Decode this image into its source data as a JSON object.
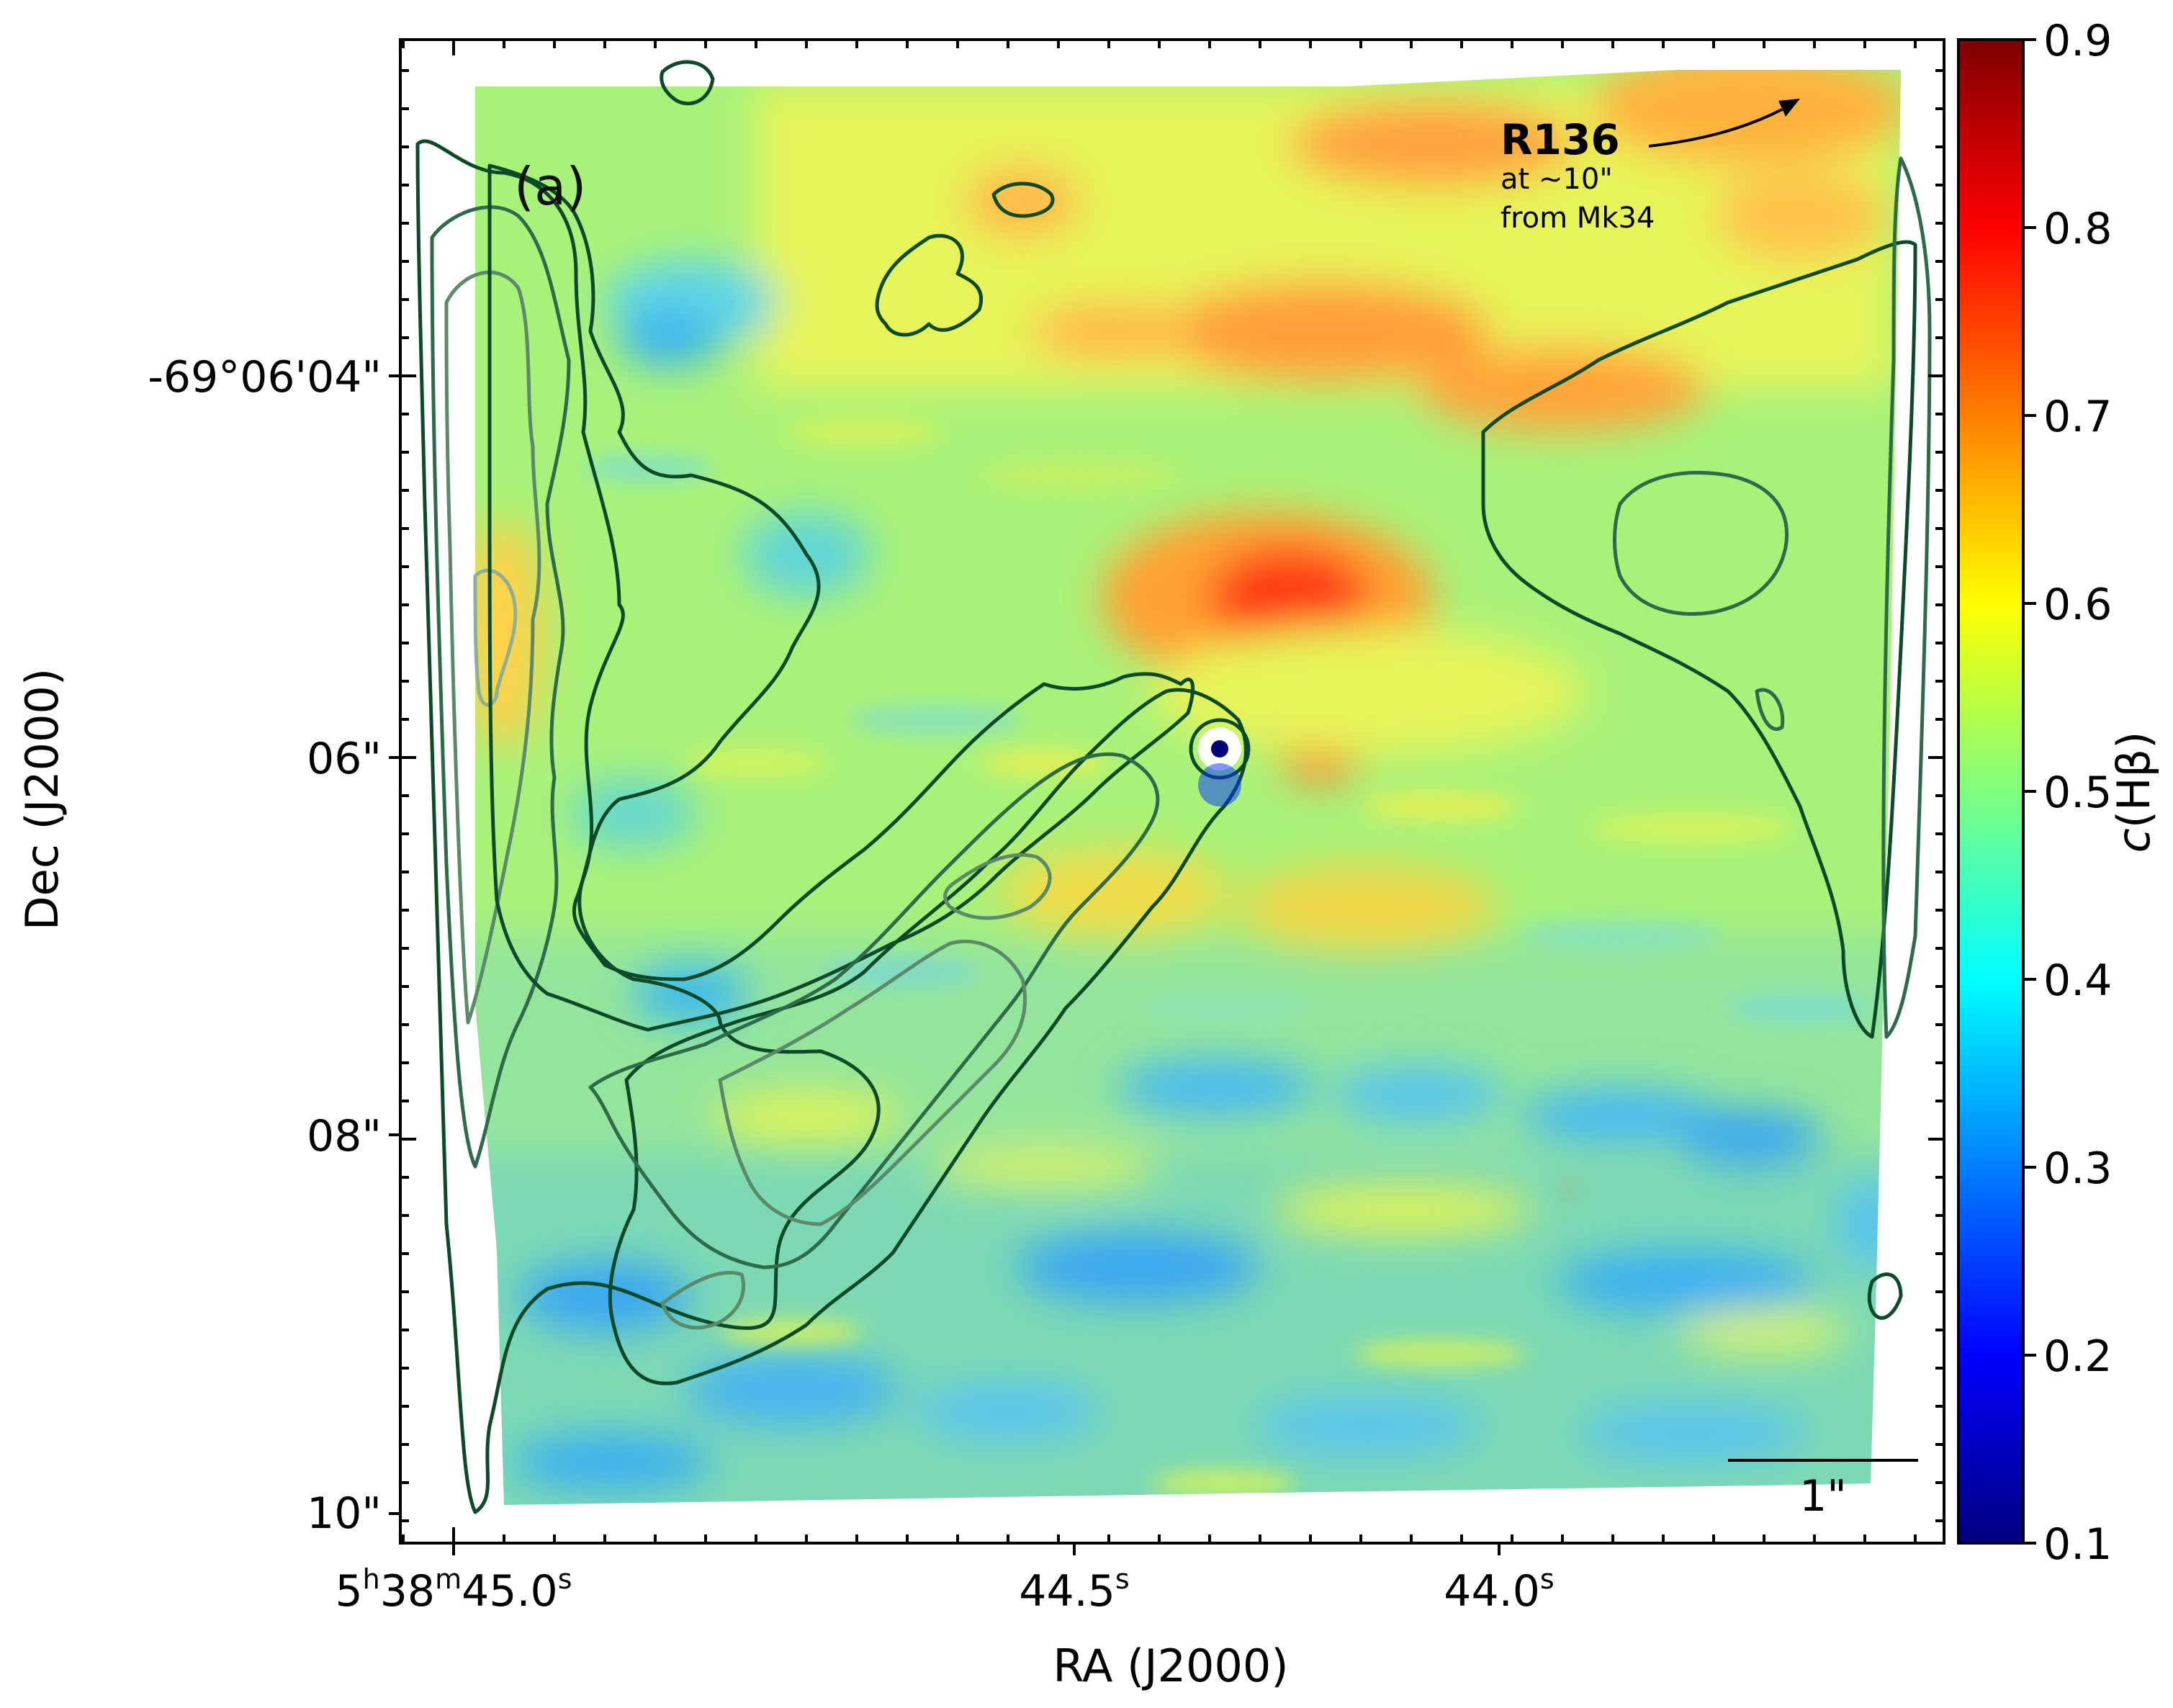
{
  "chart_data": {
    "type": "heatmap",
    "xlabel": "RA (J2000)",
    "ylabel": "Dec (J2000)",
    "panel_label": "(a)",
    "x_ticks": [
      {
        "main": "5",
        "h": "h",
        "mid1": "38",
        "m": "m",
        "mid2": "45.0",
        "s": "s"
      },
      {
        "main": "44.5",
        "s": "s"
      },
      {
        "main": "44.0",
        "s": "s"
      }
    ],
    "y_ticks": [
      "-69°06'04\"",
      "06\"",
      "08\"",
      "10\""
    ],
    "colorbar": {
      "label": "c(Hβ)",
      "label_italic": "c",
      "label_rest": "(Hβ)",
      "min": 0.1,
      "max": 0.9,
      "ticks": [
        "0.1",
        "0.2",
        "0.3",
        "0.4",
        "0.5",
        "0.6",
        "0.7",
        "0.8",
        "0.9"
      ],
      "colormap": "jet",
      "colors": [
        "#00007f",
        "#0000ff",
        "#007fff",
        "#00ffff",
        "#7fff7f",
        "#ffff00",
        "#ff7f00",
        "#ff0000",
        "#7f0000"
      ]
    },
    "annotations": {
      "target_name": "R136",
      "target_line1": "at ~10\"",
      "target_line2": "from Mk34",
      "scale_bar": "1\""
    },
    "contour_colors": [
      "#0d4a2a",
      "#2e6b4a",
      "#5a8a6a",
      "#8fae96"
    ]
  }
}
